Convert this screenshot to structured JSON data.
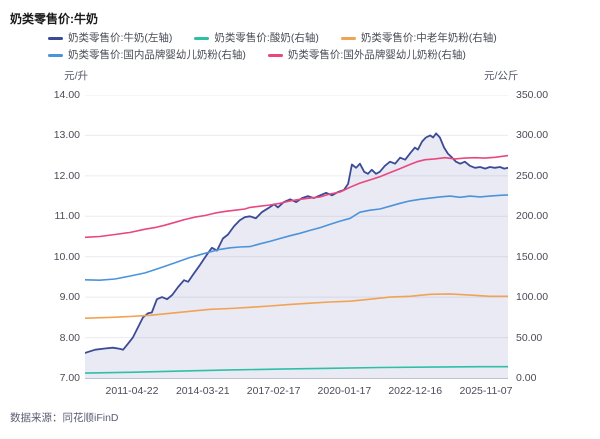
{
  "title": "奶类零售价:牛奶",
  "source": "数据来源：同花顺iFinD",
  "legend_rows": [
    [
      {
        "label": "奶类零售价:牛奶(左轴)",
        "color": "#3C4B96"
      },
      {
        "label": "奶类零售价:酸奶(右轴)",
        "color": "#2FBFA7"
      },
      {
        "label": "奶类零售价:中老年奶粉(右轴)",
        "color": "#F2A254"
      }
    ],
    [
      {
        "label": "奶类零售价:国内品牌婴幼儿奶粉(右轴)",
        "color": "#4B93DB"
      },
      {
        "label": "奶类零售价:国外品牌婴幼儿奶粉(右轴)",
        "color": "#E8477F"
      }
    ]
  ],
  "chart_data": {
    "type": "line",
    "title": "奶类零售价:牛奶",
    "grid": true,
    "grid_color": "#E9EBF3",
    "axis_line_color": "#BCC1CC",
    "left_axis": {
      "unit": "元/升",
      "range": [
        7,
        14
      ],
      "ticks": [
        "14.00",
        "13.00",
        "12.00",
        "11.00",
        "10.00",
        "9.00",
        "8.00",
        "7.00"
      ]
    },
    "right_axis": {
      "unit": "元/公斤",
      "range": [
        0,
        350
      ],
      "ticks": [
        "350.00",
        "300.00",
        "250.00",
        "200.00",
        "150.00",
        "100.00",
        "50.00",
        "0.00"
      ]
    },
    "x_axis": {
      "labels": [
        "2011-04-22",
        "2014-03-21",
        "2017-02-17",
        "2020-01-17",
        "2022-12-16",
        "2025-11-07"
      ]
    },
    "series": [
      {
        "name": "奶类零售价:牛奶(左轴)",
        "axis": "left",
        "color": "#3C4B96",
        "width": 1.8,
        "area": true,
        "area_color": "rgba(70,86,160,0.12)",
        "points": [
          [
            0,
            7.62
          ],
          [
            0.024,
            7.7
          ],
          [
            0.047,
            7.73
          ],
          [
            0.066,
            7.75
          ],
          [
            0.083,
            7.72
          ],
          [
            0.09,
            7.7
          ],
          [
            0.102,
            7.85
          ],
          [
            0.113,
            8.0
          ],
          [
            0.125,
            8.25
          ],
          [
            0.137,
            8.5
          ],
          [
            0.149,
            8.6
          ],
          [
            0.158,
            8.62
          ],
          [
            0.17,
            8.95
          ],
          [
            0.182,
            9.0
          ],
          [
            0.194,
            8.95
          ],
          [
            0.206,
            9.05
          ],
          [
            0.22,
            9.25
          ],
          [
            0.234,
            9.42
          ],
          [
            0.244,
            9.38
          ],
          [
            0.255,
            9.55
          ],
          [
            0.272,
            9.8
          ],
          [
            0.288,
            10.05
          ],
          [
            0.3,
            10.22
          ],
          [
            0.312,
            10.15
          ],
          [
            0.326,
            10.45
          ],
          [
            0.338,
            10.55
          ],
          [
            0.352,
            10.75
          ],
          [
            0.366,
            10.9
          ],
          [
            0.378,
            10.98
          ],
          [
            0.39,
            11.0
          ],
          [
            0.404,
            10.95
          ],
          [
            0.418,
            11.1
          ],
          [
            0.433,
            11.2
          ],
          [
            0.447,
            11.3
          ],
          [
            0.456,
            11.22
          ],
          [
            0.47,
            11.35
          ],
          [
            0.485,
            11.42
          ],
          [
            0.499,
            11.35
          ],
          [
            0.513,
            11.45
          ],
          [
            0.527,
            11.5
          ],
          [
            0.541,
            11.45
          ],
          [
            0.556,
            11.52
          ],
          [
            0.57,
            11.58
          ],
          [
            0.584,
            11.52
          ],
          [
            0.598,
            11.6
          ],
          [
            0.612,
            11.65
          ],
          [
            0.622,
            11.8
          ],
          [
            0.631,
            12.28
          ],
          [
            0.641,
            12.2
          ],
          [
            0.65,
            12.3
          ],
          [
            0.66,
            12.1
          ],
          [
            0.669,
            12.05
          ],
          [
            0.678,
            12.15
          ],
          [
            0.688,
            12.05
          ],
          [
            0.697,
            12.1
          ],
          [
            0.709,
            12.25
          ],
          [
            0.721,
            12.35
          ],
          [
            0.733,
            12.3
          ],
          [
            0.745,
            12.45
          ],
          [
            0.757,
            12.4
          ],
          [
            0.768,
            12.55
          ],
          [
            0.78,
            12.7
          ],
          [
            0.787,
            12.65
          ],
          [
            0.797,
            12.85
          ],
          [
            0.806,
            12.95
          ],
          [
            0.816,
            13.0
          ],
          [
            0.823,
            12.95
          ],
          [
            0.83,
            13.05
          ],
          [
            0.839,
            12.95
          ],
          [
            0.849,
            12.7
          ],
          [
            0.858,
            12.55
          ],
          [
            0.868,
            12.45
          ],
          [
            0.877,
            12.35
          ],
          [
            0.887,
            12.3
          ],
          [
            0.898,
            12.35
          ],
          [
            0.91,
            12.25
          ],
          [
            0.922,
            12.2
          ],
          [
            0.934,
            12.22
          ],
          [
            0.946,
            12.18
          ],
          [
            0.957,
            12.22
          ],
          [
            0.969,
            12.2
          ],
          [
            0.981,
            12.22
          ],
          [
            0.991,
            12.18
          ],
          [
            1,
            12.2
          ]
        ]
      },
      {
        "name": "奶类零售价:酸奶(右轴)",
        "axis": "right",
        "color": "#2FBFA7",
        "width": 1.6,
        "area": false,
        "points": [
          [
            0,
            6
          ],
          [
            0.106,
            7
          ],
          [
            0.225,
            8.5
          ],
          [
            0.343,
            10
          ],
          [
            0.461,
            11
          ],
          [
            0.579,
            12
          ],
          [
            0.697,
            13
          ],
          [
            0.816,
            13.5
          ],
          [
            0.934,
            14
          ],
          [
            1,
            14
          ]
        ]
      },
      {
        "name": "奶类零售价:中老年奶粉(右轴)",
        "axis": "right",
        "color": "#F2A254",
        "width": 1.6,
        "area": false,
        "points": [
          [
            0,
            74
          ],
          [
            0.059,
            75
          ],
          [
            0.106,
            76
          ],
          [
            0.154,
            77.5
          ],
          [
            0.201,
            80
          ],
          [
            0.248,
            82.5
          ],
          [
            0.296,
            85
          ],
          [
            0.343,
            86
          ],
          [
            0.39,
            87.5
          ],
          [
            0.437,
            89
          ],
          [
            0.485,
            91
          ],
          [
            0.532,
            92.5
          ],
          [
            0.579,
            94
          ],
          [
            0.627,
            95
          ],
          [
            0.674,
            97.5
          ],
          [
            0.721,
            100
          ],
          [
            0.768,
            101
          ],
          [
            0.816,
            103.5
          ],
          [
            0.863,
            104
          ],
          [
            0.91,
            102.5
          ],
          [
            0.957,
            101
          ],
          [
            1,
            101
          ]
        ]
      },
      {
        "name": "奶类零售价:国内品牌婴幼儿奶粉(右轴)",
        "axis": "right",
        "color": "#4B93DB",
        "width": 1.6,
        "area": false,
        "points": [
          [
            0,
            121.5
          ],
          [
            0.035,
            121
          ],
          [
            0.071,
            122.5
          ],
          [
            0.106,
            126
          ],
          [
            0.142,
            130
          ],
          [
            0.177,
            136
          ],
          [
            0.213,
            142.5
          ],
          [
            0.248,
            149
          ],
          [
            0.272,
            152.5
          ],
          [
            0.296,
            156
          ],
          [
            0.319,
            159
          ],
          [
            0.343,
            161
          ],
          [
            0.366,
            162
          ],
          [
            0.39,
            162.5
          ],
          [
            0.414,
            166
          ],
          [
            0.437,
            169
          ],
          [
            0.461,
            172.5
          ],
          [
            0.485,
            176
          ],
          [
            0.508,
            179
          ],
          [
            0.532,
            182.5
          ],
          [
            0.556,
            186
          ],
          [
            0.579,
            190
          ],
          [
            0.603,
            194
          ],
          [
            0.627,
            197.5
          ],
          [
            0.65,
            205
          ],
          [
            0.674,
            207.5
          ],
          [
            0.697,
            209
          ],
          [
            0.721,
            212.5
          ],
          [
            0.745,
            216
          ],
          [
            0.768,
            219
          ],
          [
            0.792,
            221
          ],
          [
            0.816,
            222.5
          ],
          [
            0.839,
            224
          ],
          [
            0.863,
            225
          ],
          [
            0.887,
            223.5
          ],
          [
            0.91,
            225
          ],
          [
            0.934,
            224
          ],
          [
            0.957,
            225
          ],
          [
            0.981,
            226
          ],
          [
            1,
            226.5
          ]
        ]
      },
      {
        "name": "奶类零售价:国外品牌婴幼儿奶粉(右轴)",
        "axis": "right",
        "color": "#E8477F",
        "width": 1.6,
        "area": false,
        "points": [
          [
            0,
            174
          ],
          [
            0.035,
            175
          ],
          [
            0.071,
            177.5
          ],
          [
            0.106,
            180
          ],
          [
            0.142,
            184
          ],
          [
            0.165,
            186
          ],
          [
            0.189,
            189
          ],
          [
            0.213,
            192.5
          ],
          [
            0.236,
            196
          ],
          [
            0.26,
            199
          ],
          [
            0.284,
            201
          ],
          [
            0.307,
            204
          ],
          [
            0.331,
            206
          ],
          [
            0.355,
            207.5
          ],
          [
            0.378,
            209
          ],
          [
            0.39,
            211
          ],
          [
            0.414,
            212.5
          ],
          [
            0.437,
            214
          ],
          [
            0.461,
            216
          ],
          [
            0.485,
            219
          ],
          [
            0.508,
            221
          ],
          [
            0.532,
            222.5
          ],
          [
            0.556,
            224
          ],
          [
            0.579,
            227.5
          ],
          [
            0.603,
            230
          ],
          [
            0.627,
            236
          ],
          [
            0.65,
            241
          ],
          [
            0.674,
            245
          ],
          [
            0.697,
            249
          ],
          [
            0.721,
            254
          ],
          [
            0.745,
            259
          ],
          [
            0.768,
            264
          ],
          [
            0.785,
            267.5
          ],
          [
            0.804,
            270
          ],
          [
            0.827,
            271
          ],
          [
            0.851,
            272.5
          ],
          [
            0.875,
            271
          ],
          [
            0.898,
            272
          ],
          [
            0.922,
            272.5
          ],
          [
            0.946,
            272
          ],
          [
            0.969,
            273
          ],
          [
            1,
            275
          ]
        ]
      }
    ]
  }
}
